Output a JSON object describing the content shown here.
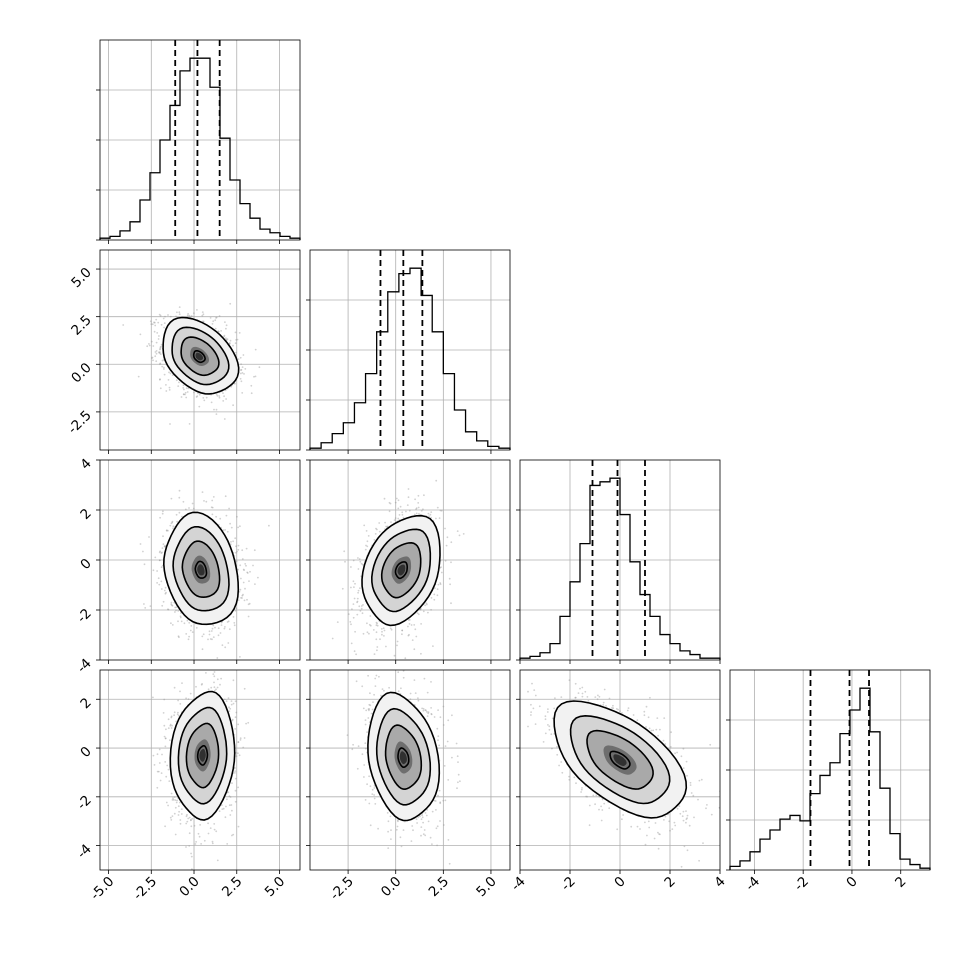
{
  "chart_data": {
    "type": "corner",
    "title": "",
    "n_params": 4,
    "parameter_names": [
      "",
      "",
      "",
      ""
    ],
    "grid": true,
    "x_ticks": [
      [
        "-5.0",
        "-2.5",
        "0.0",
        "2.5",
        "5.0"
      ],
      [
        "-2.5",
        "0.0",
        "2.5",
        "5.0"
      ],
      [
        "-4",
        "-2",
        "0",
        "2",
        "4"
      ],
      [
        "-4",
        "-2",
        "0",
        "2"
      ]
    ],
    "y_ticks": [
      null,
      [
        "-2.5",
        "0.0",
        "2.5",
        "5.0"
      ],
      [
        "-4",
        "-2",
        "0",
        "2",
        "4"
      ],
      [
        "-4",
        "-2",
        "0",
        "2"
      ]
    ],
    "marginals": [
      {
        "param": 0,
        "range": [
          -5.5,
          6.2
        ],
        "quantiles": [
          -1.1,
          0.2,
          1.5
        ],
        "counts": [
          1,
          2,
          5,
          10,
          22,
          37,
          55,
          74,
          93,
          100,
          100,
          84,
          56,
          33,
          20,
          12,
          6,
          4,
          2,
          1
        ]
      },
      {
        "param": 1,
        "range": [
          -4.5,
          6.0
        ],
        "quantiles": [
          -0.8,
          0.4,
          1.4
        ],
        "counts": [
          1,
          4,
          9,
          15,
          26,
          42,
          65,
          87,
          97,
          100,
          85,
          65,
          42,
          22,
          10,
          5,
          2,
          1
        ]
      },
      {
        "param": 2,
        "range": [
          -4.0,
          4.0
        ],
        "quantiles": [
          -1.1,
          -0.1,
          1.0
        ],
        "counts": [
          1,
          2,
          4,
          9,
          24,
          43,
          64,
          96,
          98,
          100,
          80,
          54,
          36,
          24,
          14,
          9,
          5,
          3,
          1,
          1
        ]
      },
      {
        "param": 3,
        "range": [
          -5.0,
          3.2
        ],
        "quantiles": [
          -1.7,
          -0.1,
          0.7
        ],
        "counts": [
          2,
          5,
          10,
          17,
          22,
          28,
          30,
          27,
          42,
          52,
          59,
          75,
          88,
          100,
          76,
          45,
          20,
          6,
          3,
          1
        ]
      }
    ],
    "joint": [
      {
        "x_param": 0,
        "y_param": 1,
        "mean": [
          0.3,
          0.4
        ],
        "sd": [
          1.1,
          1.0
        ],
        "corr": -0.3
      },
      {
        "x_param": 0,
        "y_param": 2,
        "mean": [
          0.4,
          -0.4
        ],
        "sd": [
          1.1,
          1.1
        ],
        "corr": -0.15
      },
      {
        "x_param": 1,
        "y_param": 2,
        "mean": [
          0.3,
          -0.4
        ],
        "sd": [
          1.0,
          1.1
        ],
        "corr": 0.3
      },
      {
        "x_param": 0,
        "y_param": 3,
        "mean": [
          0.5,
          -0.3
        ],
        "sd": [
          0.9,
          1.3
        ],
        "corr": 0.1
      },
      {
        "x_param": 1,
        "y_param": 3,
        "mean": [
          0.4,
          -0.4
        ],
        "sd": [
          0.9,
          1.3
        ],
        "corr": -0.2
      },
      {
        "x_param": 2,
        "y_param": 3,
        "mean": [
          0.0,
          -0.5
        ],
        "sd": [
          1.3,
          1.2
        ],
        "corr": -0.55
      }
    ]
  }
}
